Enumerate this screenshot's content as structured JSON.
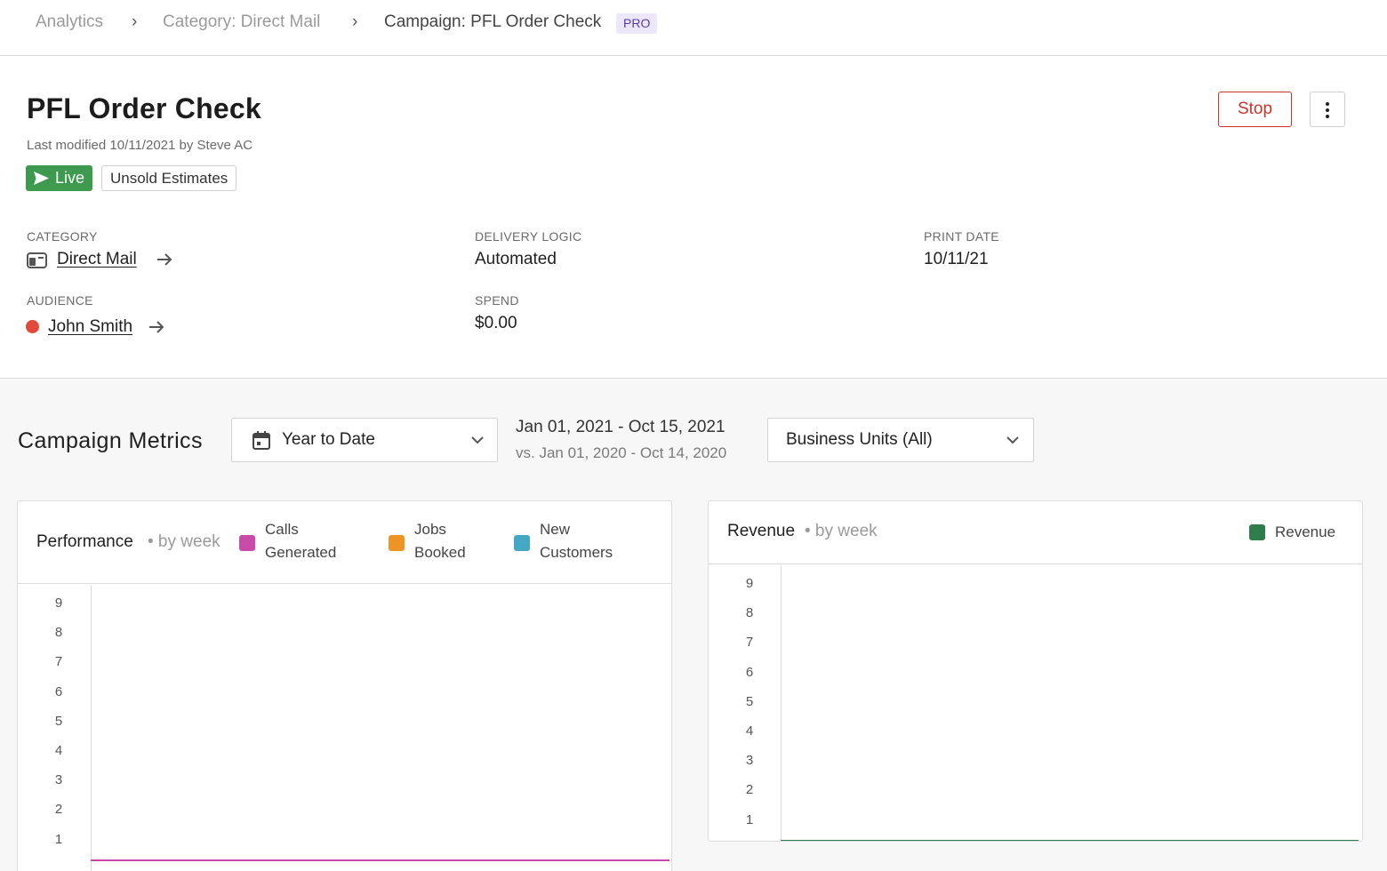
{
  "breadcrumb": {
    "items": [
      "Analytics",
      "Category: Direct Mail",
      "Campaign: PFL Order Check"
    ],
    "separator": "›",
    "badge": "PRO"
  },
  "header": {
    "title": "PFL Order Check",
    "last_modified": "Last modified 10/11/2021 by Steve AC",
    "status_badge": "Live",
    "tag": "Unsold Estimates",
    "stop_label": "Stop"
  },
  "details": {
    "category_label": "CATEGORY",
    "category_value": "Direct Mail",
    "delivery_label": "DELIVERY LOGIC",
    "delivery_value": "Automated",
    "print_label": "PRINT DATE",
    "print_value": "10/11/21",
    "audience_label": "AUDIENCE",
    "audience_value": "John Smith",
    "spend_label": "SPEND",
    "spend_value": "$0.00"
  },
  "metrics": {
    "title": "Campaign Metrics",
    "period_select": "Year to Date",
    "date_range": "Jan 01, 2021 - Oct 15, 2021",
    "date_compare": "vs. Jan 01, 2020 - Oct 14, 2020",
    "business_units_select": "Business Units (All)"
  },
  "colors": {
    "live_green": "#3e9a4f",
    "stop_red": "#c9342a",
    "calls_pink": "#c94aa8",
    "jobs_orange": "#ef9325",
    "customers_blue": "#44a7c4",
    "revenue_green": "#2e7d4b"
  },
  "chart_data": [
    {
      "type": "line",
      "title": "Performance",
      "subtitle": "• by week",
      "legend": [
        "Calls Generated",
        "Jobs Booked",
        "New Customers"
      ],
      "legend_lines": [
        [
          "Calls",
          "Generated"
        ],
        [
          "Jobs",
          "Booked"
        ],
        [
          "New",
          "Customers"
        ]
      ],
      "y_ticks": [
        "9",
        "8",
        "7",
        "6",
        "5",
        "4",
        "3",
        "2",
        "1"
      ],
      "series": [
        {
          "name": "Calls Generated",
          "values": [
            0
          ]
        },
        {
          "name": "Jobs Booked",
          "values": [
            0
          ]
        },
        {
          "name": "New Customers",
          "values": [
            0
          ]
        }
      ]
    },
    {
      "type": "line",
      "title": "Revenue",
      "subtitle": "• by week",
      "legend": [
        "Revenue"
      ],
      "y_ticks": [
        "9",
        "8",
        "7",
        "6",
        "5",
        "4",
        "3",
        "2",
        "1"
      ],
      "series": [
        {
          "name": "Revenue",
          "values": [
            0
          ]
        }
      ]
    }
  ]
}
